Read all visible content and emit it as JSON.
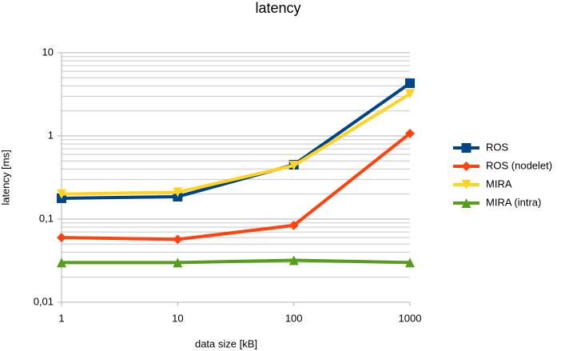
{
  "chart_data": {
    "type": "line",
    "title": "latency",
    "x_label": "data size [kB]",
    "y_label": "latency [ms]",
    "x": [
      1,
      10,
      100,
      1000
    ],
    "xlim": [
      1,
      1000
    ],
    "xticks": [
      1,
      10,
      100,
      1000
    ],
    "xlog": true,
    "ylim": [
      0.01,
      10
    ],
    "ylog": true,
    "yticks": [
      {
        "value": 0.01,
        "label": "0,01"
      },
      {
        "value": 0.1,
        "label": "0,1"
      },
      1,
      10
    ],
    "grid": true,
    "minor_grid": true,
    "legend": "right",
    "series": [
      {
        "name": "ROS",
        "color": "#004586",
        "marker": "square",
        "values": [
          0.178,
          0.186,
          0.45,
          4.3
        ]
      },
      {
        "name": "ROS (nodelet)",
        "color": "#ff420e",
        "marker": "diamond",
        "values": [
          0.06,
          0.057,
          0.084,
          1.07
        ]
      },
      {
        "name": "MIRA",
        "color": "#ffd320",
        "marker": "triangle-down",
        "values": [
          0.2,
          0.21,
          0.44,
          3.2
        ]
      },
      {
        "name": "MIRA (intra)",
        "color": "#579d1c",
        "marker": "triangle-up",
        "values": [
          0.03,
          0.03,
          0.032,
          0.03
        ]
      }
    ]
  }
}
